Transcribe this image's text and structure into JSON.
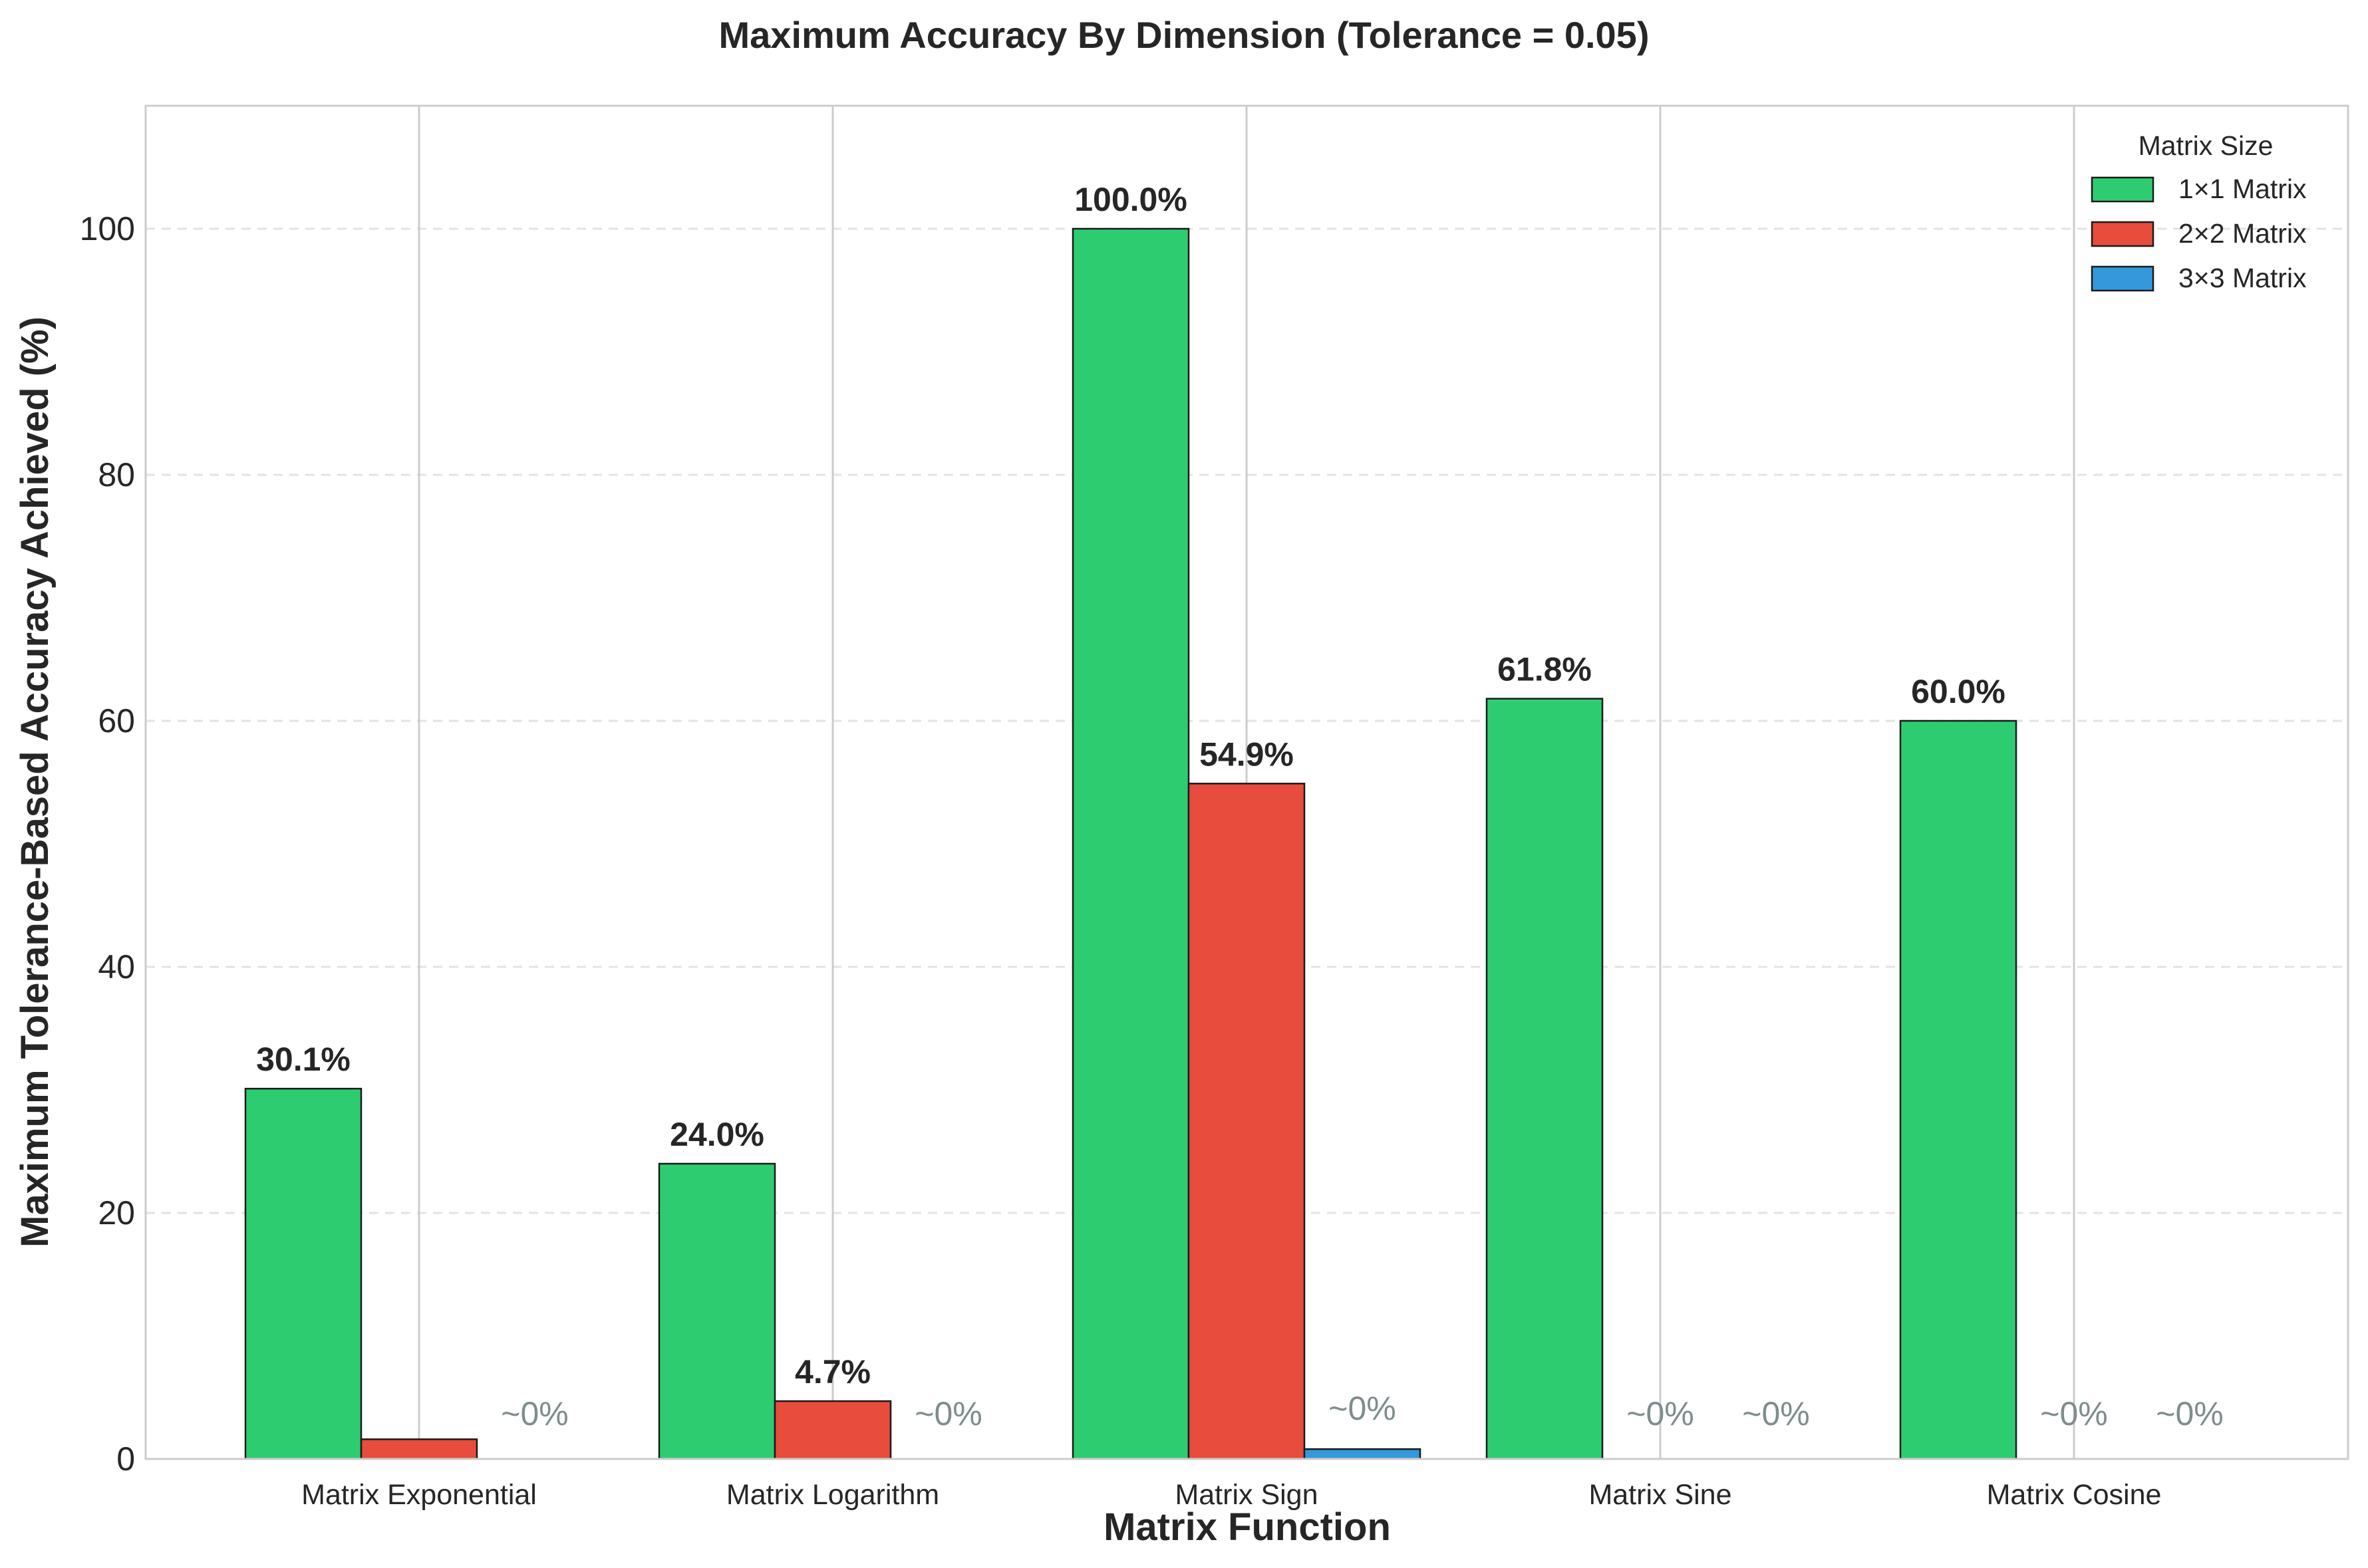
{
  "chart_data": {
    "type": "bar",
    "title": "Maximum Accuracy By Dimension (Tolerance = 0.05)",
    "xlabel": "Matrix Function",
    "ylabel": "Maximum Tolerance-Based Accuracy Achieved (%)",
    "ylim": [
      0,
      110
    ],
    "yticks": [
      0,
      20,
      40,
      60,
      80,
      100
    ],
    "grid": "horizontal dashed, vertical solid at categories",
    "legend": {
      "title": "Matrix Size",
      "placement": "top-right"
    },
    "categories": [
      "Matrix Exponential",
      "Matrix Logarithm",
      "Matrix Sign",
      "Matrix Sine",
      "Matrix Cosine"
    ],
    "series": [
      {
        "name": "1×1 Matrix",
        "color": "#2ecc71",
        "values": [
          30.1,
          24.0,
          100.0,
          61.8,
          60.0
        ],
        "labels": [
          "30.1%",
          "24.0%",
          "100.0%",
          "61.8%",
          "60.0%"
        ]
      },
      {
        "name": "2×2 Matrix",
        "color": "#e74c3c",
        "values": [
          1.6,
          4.7,
          54.9,
          0,
          0
        ],
        "labels": [
          "",
          "4.7%",
          "54.9%",
          "~0%",
          "~0%"
        ]
      },
      {
        "name": "3×3 Matrix",
        "color": "#3498db",
        "values": [
          0,
          0,
          0.8,
          0,
          0
        ],
        "labels": [
          "~0%",
          "~0%",
          "~0%",
          "~0%",
          "~0%"
        ]
      }
    ]
  }
}
